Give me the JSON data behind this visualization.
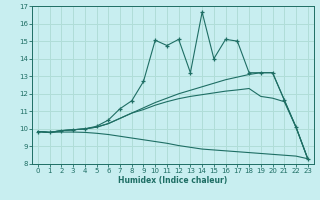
{
  "xlabel": "Humidex (Indice chaleur)",
  "bg_color": "#c8eef0",
  "grid_color": "#b0ddd8",
  "line_color": "#1e6e64",
  "xlim": [
    -0.5,
    23.5
  ],
  "ylim": [
    8,
    17
  ],
  "yticks": [
    8,
    9,
    10,
    11,
    12,
    13,
    14,
    15,
    16,
    17
  ],
  "xticks": [
    0,
    1,
    2,
    3,
    4,
    5,
    6,
    7,
    8,
    9,
    10,
    11,
    12,
    13,
    14,
    15,
    16,
    17,
    18,
    19,
    20,
    21,
    22,
    23
  ],
  "series_jagged": {
    "x": [
      0,
      1,
      2,
      3,
      4,
      5,
      6,
      7,
      8,
      9,
      10,
      11,
      12,
      13,
      14,
      15,
      16,
      17,
      18,
      19,
      20,
      21,
      22,
      23
    ],
    "y": [
      9.85,
      9.8,
      9.9,
      9.95,
      10.0,
      10.15,
      10.5,
      11.15,
      11.6,
      12.7,
      15.05,
      14.75,
      15.1,
      13.2,
      16.65,
      14.0,
      15.1,
      15.0,
      13.2,
      13.2,
      13.2,
      11.65,
      10.1,
      8.3
    ]
  },
  "series_upper": {
    "x": [
      0,
      1,
      2,
      3,
      4,
      5,
      6,
      7,
      8,
      9,
      10,
      11,
      12,
      13,
      14,
      15,
      16,
      17,
      18,
      19,
      20,
      21,
      22,
      23
    ],
    "y": [
      9.85,
      9.8,
      9.9,
      9.95,
      10.0,
      10.1,
      10.3,
      10.6,
      10.9,
      11.2,
      11.5,
      11.75,
      12.0,
      12.2,
      12.4,
      12.6,
      12.8,
      12.95,
      13.1,
      13.2,
      13.2,
      11.65,
      10.1,
      8.3
    ]
  },
  "series_mid": {
    "x": [
      0,
      1,
      2,
      3,
      4,
      5,
      6,
      7,
      8,
      9,
      10,
      11,
      12,
      13,
      14,
      15,
      16,
      17,
      18,
      19,
      20,
      21,
      22,
      23
    ],
    "y": [
      9.85,
      9.8,
      9.9,
      9.95,
      10.0,
      10.1,
      10.3,
      10.6,
      10.9,
      11.1,
      11.35,
      11.55,
      11.72,
      11.85,
      11.95,
      12.05,
      12.15,
      12.22,
      12.3,
      11.85,
      11.75,
      11.55,
      10.1,
      8.3
    ]
  },
  "series_lower": {
    "x": [
      0,
      1,
      2,
      3,
      4,
      5,
      6,
      7,
      8,
      9,
      10,
      11,
      12,
      13,
      14,
      15,
      16,
      17,
      18,
      19,
      20,
      21,
      22,
      23
    ],
    "y": [
      9.85,
      9.8,
      9.82,
      9.82,
      9.8,
      9.75,
      9.68,
      9.58,
      9.48,
      9.38,
      9.28,
      9.18,
      9.05,
      8.95,
      8.85,
      8.8,
      8.75,
      8.7,
      8.65,
      8.6,
      8.55,
      8.5,
      8.45,
      8.3
    ]
  }
}
